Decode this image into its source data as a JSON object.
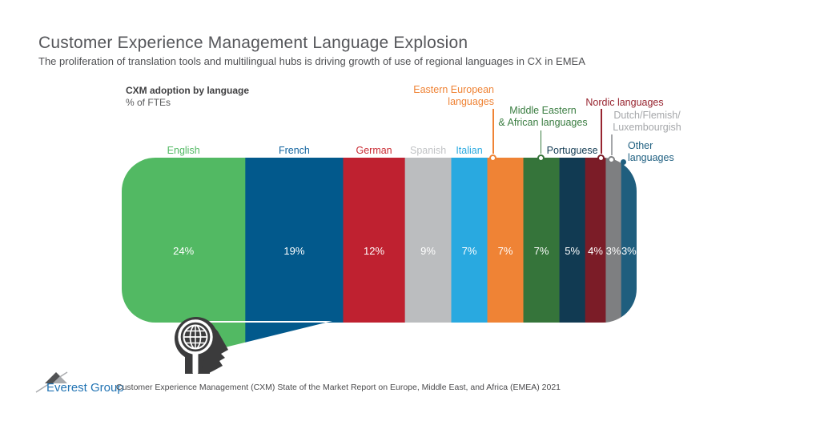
{
  "header": {
    "title": "Customer Experience Management Language Explosion",
    "subtitle": "The proliferation of translation tools and multilingual hubs is driving growth of use of regional languages in CX in EMEA"
  },
  "chart_data": {
    "type": "bar",
    "variant": "horizontal-stacked-single-bar-speech-bubble",
    "title": "CXM adoption by language",
    "unit_label": "% of FTEs",
    "value_label_color": "#ffffff",
    "legend_position": "labels-above-segments",
    "categories": [
      "English",
      "French",
      "German",
      "Spanish",
      "Italian",
      "Eastern European languages",
      "Middle Eastern & African languages",
      "Portuguese",
      "Nordic languages",
      "Dutch/Flemish/Luxembourgish",
      "Other languages"
    ],
    "values": [
      24,
      19,
      12,
      9,
      7,
      7,
      7,
      5,
      4,
      3,
      3
    ],
    "segments": [
      {
        "label": "English",
        "value": 24,
        "pct_label": "24%",
        "color": "#52b963",
        "label_color": "#52b963"
      },
      {
        "label": "French",
        "value": 19,
        "pct_label": "19%",
        "color": "#02598c",
        "label_color": "#12649f"
      },
      {
        "label": "German",
        "value": 12,
        "pct_label": "12%",
        "color": "#bf2130",
        "label_color": "#c92b33"
      },
      {
        "label": "Spanish",
        "value": 9,
        "pct_label": "9%",
        "color": "#bbbdbf",
        "label_color": "#c1c3c5"
      },
      {
        "label": "Italian",
        "value": 7,
        "pct_label": "7%",
        "color": "#29a9e0",
        "label_color": "#2aa9e0"
      },
      {
        "label": "Eastern European languages",
        "label_wrapped": "Eastern European\nlanguages",
        "value": 7,
        "pct_label": "7%",
        "color": "#ef8335",
        "label_color": "#ef8335"
      },
      {
        "label": "Middle Eastern & African languages",
        "label_wrapped": "Middle Eastern\n& African languages",
        "value": 7,
        "pct_label": "7%",
        "color": "#35743a",
        "label_color": "#3a7d41"
      },
      {
        "label": "Portuguese",
        "value": 5,
        "pct_label": "5%",
        "color": "#113a52",
        "label_color": "#123a52"
      },
      {
        "label": "Nordic languages",
        "label_wrapped": "Nordic languages",
        "value": 4,
        "pct_label": "4%",
        "color": "#7b1c27",
        "label_color": "#97242f"
      },
      {
        "label": "Dutch/Flemish/Luxembourgish",
        "label_wrapped": "Dutch/Flemish/\nLuxembourgish",
        "value": 3,
        "pct_label": "3%",
        "color": "#7e7f81",
        "label_color": "#a5a7aa"
      },
      {
        "label": "Other languages",
        "label_wrapped": "Other\nlanguages",
        "value": 3,
        "pct_label": "3%",
        "color": "#1f5e7e",
        "label_color": "#1e5f80"
      }
    ]
  },
  "icons": {
    "speaker": "head-with-globe-icon",
    "logo_mark": "mountain-peak-icon"
  },
  "footer": {
    "logo_text": "Everest Group",
    "logo_reg_mark": "®",
    "source_text": "Customer Experience Management (CXM) State of the Market Report on Europe, Middle East, and Africa (EMEA) 2021"
  }
}
